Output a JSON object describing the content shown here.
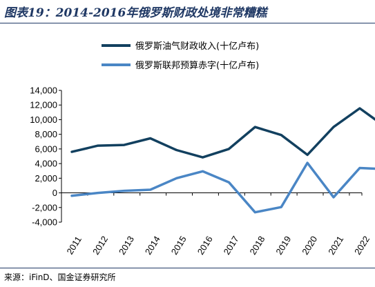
{
  "header": {
    "title": "图表19：2014-2016年俄罗斯财政处境非常糟糕"
  },
  "footer": {
    "source": "来源：iFinD、国金证券研究所"
  },
  "colors": {
    "title": "#1f3864",
    "series_1": "#12405f",
    "series_2": "#4a86c5",
    "axis": "#000000"
  },
  "chart_data": {
    "type": "line",
    "title": "",
    "xlabel": "",
    "ylabel": "",
    "x": [
      "2011",
      "2012",
      "2013",
      "2014",
      "2015",
      "2016",
      "2017",
      "2018",
      "2019",
      "2020",
      "2021",
      "2022"
    ],
    "y_ticks": [
      "14,000",
      "12,000",
      "10,000",
      "8,000",
      "6,000",
      "4,000",
      "2,000",
      "0",
      "-2,000",
      "-4,000"
    ],
    "ylim": [
      -4000,
      14000
    ],
    "grid": false,
    "legend_position": "top-right",
    "series": [
      {
        "name": "俄罗斯油气财政收入(十亿卢布)",
        "points": [
          [
            2011,
            5600
          ],
          [
            2012,
            6450
          ],
          [
            2013,
            6550
          ],
          [
            2014,
            7450
          ],
          [
            2015,
            5850
          ],
          [
            2016,
            4850
          ],
          [
            2017,
            6000
          ],
          [
            2018,
            9000
          ],
          [
            2019,
            7900
          ],
          [
            2020,
            5200
          ],
          [
            2021,
            9000
          ],
          [
            2022,
            11550
          ],
          [
            2022.6,
            10000
          ]
        ]
      },
      {
        "name": "俄罗斯联邦预算赤字(十亿卢布)",
        "points": [
          [
            2011,
            -400
          ],
          [
            2012,
            0
          ],
          [
            2013,
            280
          ],
          [
            2014,
            430
          ],
          [
            2015,
            2000
          ],
          [
            2016,
            2950
          ],
          [
            2017,
            1450
          ],
          [
            2018,
            -2650
          ],
          [
            2019,
            -1950
          ],
          [
            2020,
            4100
          ],
          [
            2021,
            -600
          ],
          [
            2022,
            3400
          ],
          [
            2022.6,
            3300
          ]
        ]
      }
    ]
  }
}
